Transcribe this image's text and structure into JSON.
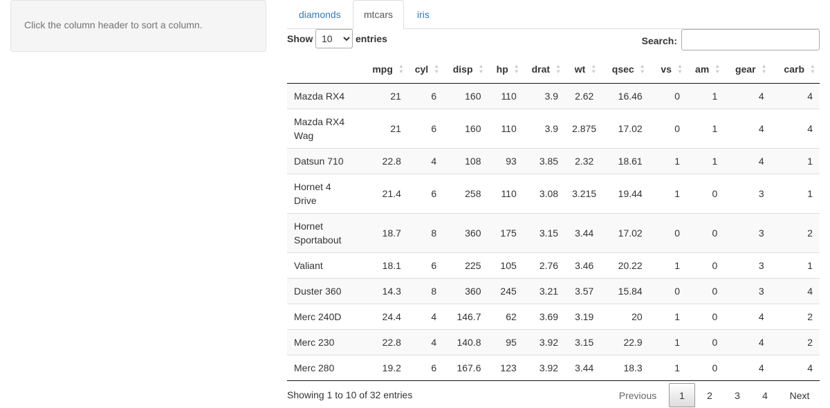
{
  "sidebar": {
    "help_text": "Click the column header to sort a column."
  },
  "tabs": [
    {
      "label": "diamonds",
      "active": false
    },
    {
      "label": "mtcars",
      "active": true
    },
    {
      "label": "iris",
      "active": false
    }
  ],
  "length": {
    "show_label": "Show",
    "selected": "10",
    "entries_label": "entries"
  },
  "search": {
    "label": "Search:",
    "value": ""
  },
  "table": {
    "columns": [
      "",
      "mpg",
      "cyl",
      "disp",
      "hp",
      "drat",
      "wt",
      "qsec",
      "vs",
      "am",
      "gear",
      "carb"
    ],
    "rows": [
      [
        "Mazda RX4",
        "21",
        "6",
        "160",
        "110",
        "3.9",
        "2.62",
        "16.46",
        "0",
        "1",
        "4",
        "4"
      ],
      [
        "Mazda RX4 Wag",
        "21",
        "6",
        "160",
        "110",
        "3.9",
        "2.875",
        "17.02",
        "0",
        "1",
        "4",
        "4"
      ],
      [
        "Datsun 710",
        "22.8",
        "4",
        "108",
        "93",
        "3.85",
        "2.32",
        "18.61",
        "1",
        "1",
        "4",
        "1"
      ],
      [
        "Hornet 4 Drive",
        "21.4",
        "6",
        "258",
        "110",
        "3.08",
        "3.215",
        "19.44",
        "1",
        "0",
        "3",
        "1"
      ],
      [
        "Hornet Sportabout",
        "18.7",
        "8",
        "360",
        "175",
        "3.15",
        "3.44",
        "17.02",
        "0",
        "0",
        "3",
        "2"
      ],
      [
        "Valiant",
        "18.1",
        "6",
        "225",
        "105",
        "2.76",
        "3.46",
        "20.22",
        "1",
        "0",
        "3",
        "1"
      ],
      [
        "Duster 360",
        "14.3",
        "8",
        "360",
        "245",
        "3.21",
        "3.57",
        "15.84",
        "0",
        "0",
        "3",
        "4"
      ],
      [
        "Merc 240D",
        "24.4",
        "4",
        "146.7",
        "62",
        "3.69",
        "3.19",
        "20",
        "1",
        "0",
        "4",
        "2"
      ],
      [
        "Merc 230",
        "22.8",
        "4",
        "140.8",
        "95",
        "3.92",
        "3.15",
        "22.9",
        "1",
        "0",
        "4",
        "2"
      ],
      [
        "Merc 280",
        "19.2",
        "6",
        "167.6",
        "123",
        "3.92",
        "3.44",
        "18.3",
        "1",
        "0",
        "4",
        "4"
      ]
    ]
  },
  "info": "Showing 1 to 10 of 32 entries",
  "pagination": {
    "previous": "Previous",
    "pages": [
      "1",
      "2",
      "3",
      "4"
    ],
    "current": "1",
    "next": "Next"
  }
}
